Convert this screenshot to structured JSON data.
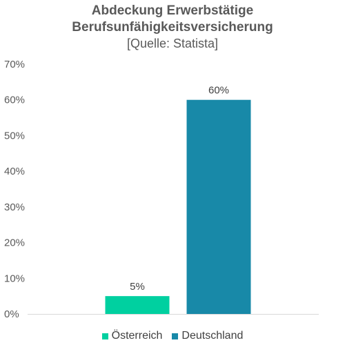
{
  "chart_data": {
    "type": "bar",
    "title_line1": "Abdeckung Erwerbstätige",
    "title_line2": "Berufsunfähigkeitsversicherung",
    "subtitle": "[Quelle: Statista]",
    "categories": [
      "Österreich",
      "Deutschland"
    ],
    "values": [
      5,
      60
    ],
    "data_labels": [
      "5%",
      "60%"
    ],
    "colors": [
      "#00d0a0",
      "#1889a8"
    ],
    "ylim": [
      0,
      70
    ],
    "yticks": [
      0,
      10,
      20,
      30,
      40,
      50,
      60,
      70
    ],
    "ytick_labels": [
      "0%",
      "10%",
      "20%",
      "30%",
      "40%",
      "50%",
      "60%",
      "70%"
    ],
    "grid": false,
    "legend_position": "bottom",
    "xlabel": "",
    "ylabel": ""
  }
}
